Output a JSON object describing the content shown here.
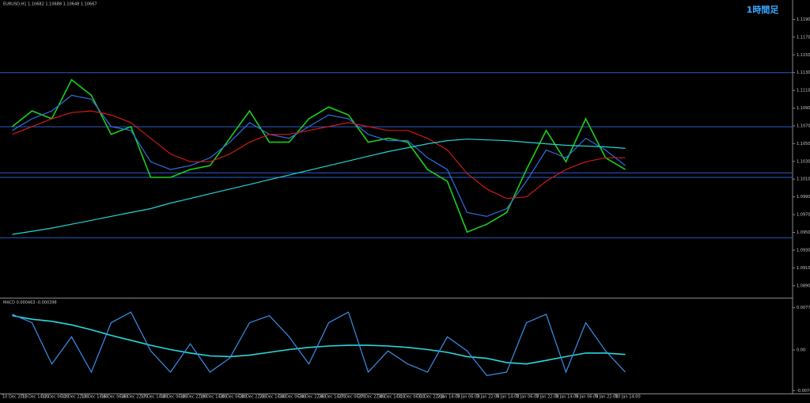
{
  "chart_data": [
    {
      "type": "line",
      "title": "EURUSD,H1 1.10682 1.10688 1.10648 1.10667",
      "badge": "1時間足",
      "categories": [
        "10 Dec 2019",
        "11 Dec 14:00",
        "12 Dec 06:00",
        "12 Dec 22:00",
        "13 Dec 14:00",
        "16 Dec 06:00",
        "16 Dec 22:00",
        "17 Dec 14:00",
        "18 Dec 06:00",
        "18 Dec 22:00",
        "19 Dec 14:00",
        "20 Dec 06:00",
        "20 Dec 22:00",
        "23 Dec 14:00",
        "24 Dec 06:00",
        "24 Dec 22:00",
        "26 Dec 14:00",
        "27 Dec 06:00",
        "27 Dec 22:00",
        "30 Dec 14:00",
        "31 Dec 06:00",
        "31 Dec 22:00",
        "2 Jan 14:00",
        "3 Jan 06:00",
        "3 Jan 22:00",
        "6 Jan 14:00",
        "7 Jan 06:00",
        "7 Jan 22:00",
        "8 Jan 14:00",
        "9 Jan 06:00",
        "9 Jan 22:00",
        "10 Jan 14:00"
      ],
      "series": [
        {
          "color": "#19d019",
          "values": [
            1.10692,
            1.10868,
            1.1078,
            1.1122,
            1.11044,
            1.10604,
            1.10692,
            1.1012,
            1.1012,
            1.10208,
            1.10252,
            1.1056,
            1.10868,
            1.10516,
            1.10516,
            1.1078,
            1.10912,
            1.10824,
            1.10516,
            1.1056,
            1.10516,
            1.10208,
            1.10076,
            1.09504,
            1.09592,
            1.09724,
            1.10208,
            1.10648,
            1.10296,
            1.1078,
            1.1034,
            1.10208
          ]
        },
        {
          "color": "#2f6fe0",
          "values": [
            1.10648,
            1.1078,
            1.10868,
            1.11044,
            1.11,
            1.10692,
            1.10648,
            1.10296,
            1.10208,
            1.10252,
            1.1034,
            1.10516,
            1.10736,
            1.10604,
            1.1056,
            1.10692,
            1.10824,
            1.1078,
            1.10604,
            1.10534,
            1.10534,
            1.1034,
            1.10208,
            1.09724,
            1.0968,
            1.09768,
            1.10076,
            1.10428,
            1.1034,
            1.1056,
            1.10428,
            1.10252
          ]
        },
        {
          "color": "#d01818",
          "values": [
            1.10604,
            1.10692,
            1.1078,
            1.1085,
            1.10868,
            1.10824,
            1.10736,
            1.1056,
            1.10384,
            1.10296,
            1.10296,
            1.10384,
            1.10516,
            1.10604,
            1.10604,
            1.10648,
            1.10692,
            1.10736,
            1.10692,
            1.10648,
            1.10648,
            1.1056,
            1.10428,
            1.10164,
            1.09988,
            1.09882,
            1.099,
            1.10076,
            1.10208,
            1.10296,
            1.1034,
            1.1034
          ]
        },
        {
          "color": "#22d3d3",
          "values": [
            1.09478,
            1.09513,
            1.09548,
            1.09592,
            1.09636,
            1.0968,
            1.09724,
            1.09768,
            1.0983,
            1.09882,
            1.09935,
            1.09988,
            1.10041,
            1.10094,
            1.10146,
            1.10199,
            1.10252,
            1.10305,
            1.10358,
            1.1041,
            1.10454,
            1.10498,
            1.10534,
            1.10551,
            1.10542,
            1.10534,
            1.10516,
            1.10498,
            1.10481,
            1.10472,
            1.10463,
            1.10446
          ]
        }
      ],
      "hlines": [
        1.113,
        1.1069,
        1.1017,
        1.1012,
        1.0944
      ],
      "hline_color": "#2a5cc8",
      "ylim": [
        1.088,
        1.121
      ],
      "yticks": [
        {
          "value": 1.089,
          "label": "1.08900"
        },
        {
          "value": 1.091,
          "label": "1.09100"
        },
        {
          "value": 1.093,
          "label": "1.09300"
        },
        {
          "value": 1.095,
          "label": "1.09500"
        },
        {
          "value": 1.097,
          "label": "1.09700"
        },
        {
          "value": 1.099,
          "label": "1.09900"
        },
        {
          "value": 1.101,
          "label": "1.10100"
        },
        {
          "value": 1.103,
          "label": "1.10300"
        },
        {
          "value": 1.105,
          "label": "1.10500"
        },
        {
          "value": 1.107,
          "label": "1.10700"
        },
        {
          "value": 1.109,
          "label": "1.10900"
        },
        {
          "value": 1.111,
          "label": "1.11100"
        },
        {
          "value": 1.113,
          "label": "1.11300"
        },
        {
          "value": 1.115,
          "label": "1.11500"
        },
        {
          "value": 1.117,
          "label": "1.11700"
        },
        {
          "value": 1.119,
          "label": "1.11900"
        }
      ]
    },
    {
      "type": "line",
      "title": "MACD 0.000463 -0.000398",
      "series": [
        {
          "color": "#29d8e0",
          "values": [
            0.00626,
            0.00561,
            0.00523,
            0.00458,
            0.00368,
            0.00266,
            0.00176,
            0.00086,
            8e-05,
            -0.00056,
            -0.00107,
            -0.0012,
            -0.00094,
            -0.00043,
            8e-05,
            0.00047,
            0.00073,
            0.00086,
            0.00086,
            0.00073,
            0.00047,
            8e-05,
            -0.00043,
            -0.0012,
            -0.00152,
            -0.00229,
            -0.00255,
            -0.0019,
            -0.0012,
            -0.00056,
            -0.00056,
            -0.00082
          ]
        },
        {
          "color": "#3b8fe8",
          "values": [
            0.00651,
            0.00497,
            -0.00255,
            0.0024,
            -0.00403,
            0.00497,
            0.0069,
            -0.00017,
            -0.00403,
            0.00111,
            -0.00403,
            -0.00146,
            0.00497,
            0.00626,
            0.0024,
            -0.00255,
            0.00497,
            0.0069,
            -0.00403,
            -0.00017,
            -0.00255,
            -0.00403,
            0.0024,
            -0.00017,
            -0.00467,
            -0.00403,
            0.00497,
            0.00651,
            -0.00403,
            0.00497,
            -0.00017,
            -0.00403
          ]
        }
      ],
      "ylim": [
        -0.0075,
        0.0078
      ],
      "yticks": [
        {
          "value": 0.0077,
          "label": "0.00774"
        },
        {
          "value": 0,
          "label": "0.00"
        },
        {
          "value": -0.0074,
          "label": "-0.00741"
        }
      ]
    }
  ]
}
